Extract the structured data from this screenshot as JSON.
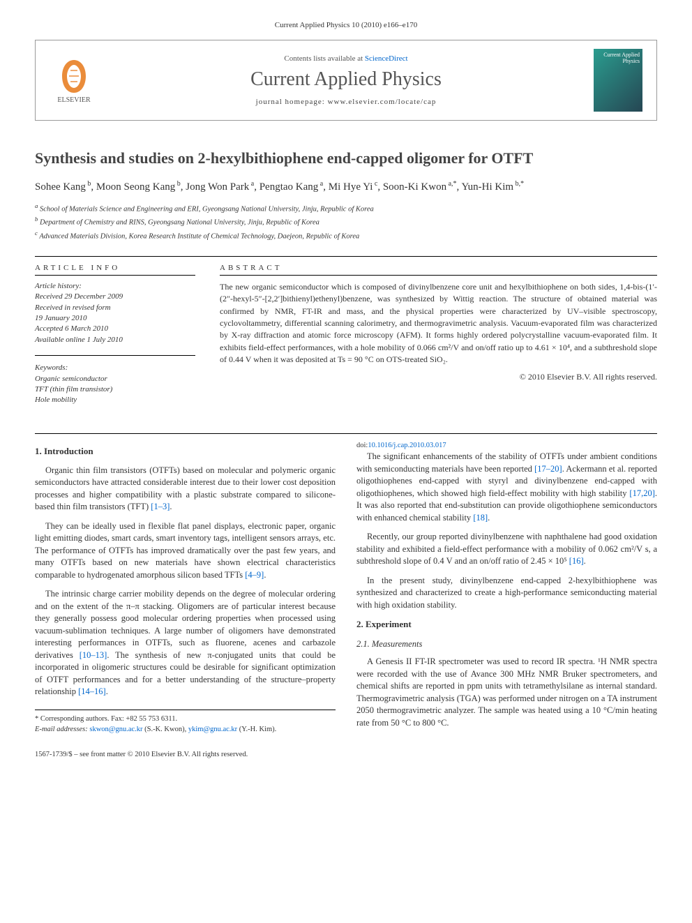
{
  "citation": "Current Applied Physics 10 (2010) e166–e170",
  "header": {
    "contents_prefix": "Contents lists available at ",
    "contents_link": "ScienceDirect",
    "journal": "Current Applied Physics",
    "homepage_label": "journal homepage: ",
    "homepage_url": "www.elsevier.com/locate/cap",
    "publisher": "ELSEVIER",
    "cover_text": "Current Applied Physics"
  },
  "title": "Synthesis and studies on 2-hexylbithiophene end-capped oligomer for OTFT",
  "authors_html": "Sohee Kang<sup> b</sup>, Moon Seong Kang<sup> b</sup>, Jong Won Park<sup> a</sup>, Pengtao Kang<sup> a</sup>, Mi Hye Yi<sup> c</sup>, Soon-Ki Kwon<sup> a,*</sup>, Yun-Hi Kim<sup> b,*</sup>",
  "affiliations": [
    "a School of Materials Science and Engineering and ERI, Gyeongsang National University, Jinju, Republic of Korea",
    "b Department of Chemistry and RINS, Gyeongsang National University, Jinju, Republic of Korea",
    "c Advanced Materials Division, Korea Research Institute of Chemical Technology, Daejeon, Republic of Korea"
  ],
  "info": {
    "heading": "ARTICLE INFO",
    "history_head": "Article history:",
    "history": [
      "Received 29 December 2009",
      "Received in revised form",
      "19 January 2010",
      "Accepted 6 March 2010",
      "Available online 1 July 2010"
    ],
    "keywords_head": "Keywords:",
    "keywords": [
      "Organic semiconductor",
      "TFT (thin film transistor)",
      "Hole mobility"
    ]
  },
  "abstract": {
    "heading": "ABSTRACT",
    "text": "The new organic semiconductor which is composed of divinylbenzene core unit and hexylbithiophene on both sides, 1,4-bis-(1′-(2″-hexyl-5″-[2,2′]bithienyl)ethenyl)benzene, was synthesized by Wittig reaction. The structure of obtained material was confirmed by NMR, FT-IR and mass, and the physical properties were characterized by UV–visible spectroscopy, cyclovoltammetry, differential scanning calorimetry, and thermogravimetric analysis. Vacuum-evaporated film was characterized by X-ray diffraction and atomic force microscopy (AFM). It forms highly ordered polycrystalline vacuum-evaporated film. It exhibits field-effect performances, with a hole mobility of 0.066 cm²/V and on/off ratio up to 4.61 × 10⁴, and a subthreshold slope of 0.44 V when it was deposited at Ts = 90 °C on OTS-treated SiO₂.",
    "copyright": "© 2010 Elsevier B.V. All rights reserved."
  },
  "sections": {
    "intro_head": "1. Introduction",
    "intro_p1": "Organic thin film transistors (OTFTs) based on molecular and polymeric organic semiconductors have attracted considerable interest due to their lower cost deposition processes and higher compatibility with a plastic substrate compared to silicone-based thin film transistors (TFT) ",
    "intro_ref1": "[1–3]",
    "intro_p1_end": ".",
    "intro_p2": "They can be ideally used in flexible flat panel displays, electronic paper, organic light emitting diodes, smart cards, smart inventory tags, intelligent sensors arrays, etc. The performance of OTFTs has improved dramatically over the past few years, and many OTFTs based on new materials have shown electrical characteristics comparable to hydrogenated amorphous silicon based TFTs ",
    "intro_ref2": "[4–9]",
    "intro_p2_end": ".",
    "intro_p3a": "The intrinsic charge carrier mobility depends on the degree of molecular ordering and on the extent of the π–π stacking. Oligomers are of particular interest because they generally possess good molecular ordering properties when processed using vacuum-sublimation techniques. A large number of oligomers have demonstrated interesting performances in OTFTs, such as fluorene, acenes and carbazole derivatives ",
    "intro_ref3": "[10–13]",
    "intro_p3b": ". The synthesis of new π-conjugated units that could be incorporated in oligomeric structures could be desirable for significant optimization of OTFT performances and for a better understanding of the structure–property relationship ",
    "intro_ref4": "[14–16]",
    "intro_p3_end": ".",
    "intro_p4a": "The significant enhancements of the stability of OTFTs under ambient conditions with semiconducting materials have been reported ",
    "intro_ref5": "[17–20]",
    "intro_p4b": ". Ackermann et al. reported oligothiophenes end-capped with styryl and divinylbenzene end-capped with oligothiophenes, which showed high field-effect mobility with high stability ",
    "intro_ref6": "[17,20]",
    "intro_p4c": ". It was also reported that end-substitution can provide oligothiophene semiconductors with enhanced chemical stability ",
    "intro_ref7": "[18]",
    "intro_p4_end": ".",
    "intro_p5a": "Recently, our group reported divinylbenzene with naphthalene had good oxidation stability and exhibited a field-effect performance with a mobility of 0.062 cm²/V s, a subthreshold slope of 0.4 V and an on/off ratio of 2.45 × 10⁵ ",
    "intro_ref8": "[16]",
    "intro_p5_end": ".",
    "intro_p6": "In the present study, divinylbenzene end-capped 2-hexylbithiophene was synthesized and characterized to create a high-performance semiconducting material with high oxidation stability.",
    "exp_head": "2. Experiment",
    "meas_head": "2.1. Measurements",
    "meas_p1": "A Genesis II FT-IR spectrometer was used to record IR spectra. ¹H NMR spectra were recorded with the use of Avance 300 MHz NMR Bruker spectrometers, and chemical shifts are reported in ppm units with tetramethylsilane as internal standard. Thermogravimetric analysis (TGA) was performed under nitrogen on a TA instrument 2050 thermogravimetric analyzer. The sample was heated using a 10 °C/min heating rate from 50 °C to 800 °C."
  },
  "footer": {
    "corresponding": "* Corresponding authors. Fax: +82 55 753 6311.",
    "email_label": "E-mail addresses: ",
    "email1": "skwon@gnu.ac.kr",
    "email1_who": " (S.-K. Kwon), ",
    "email2": "ykim@gnu.ac.kr",
    "email2_who": " (Y.-H. Kim).",
    "issn": "1567-1739/$ – see front matter © 2010 Elsevier B.V. All rights reserved.",
    "doi_label": "doi:",
    "doi": "10.1016/j.cap.2010.03.017"
  },
  "colors": {
    "link": "#0066cc",
    "elsevier_orange": "#e67817",
    "text": "#333333",
    "heading_gray": "#555555"
  }
}
